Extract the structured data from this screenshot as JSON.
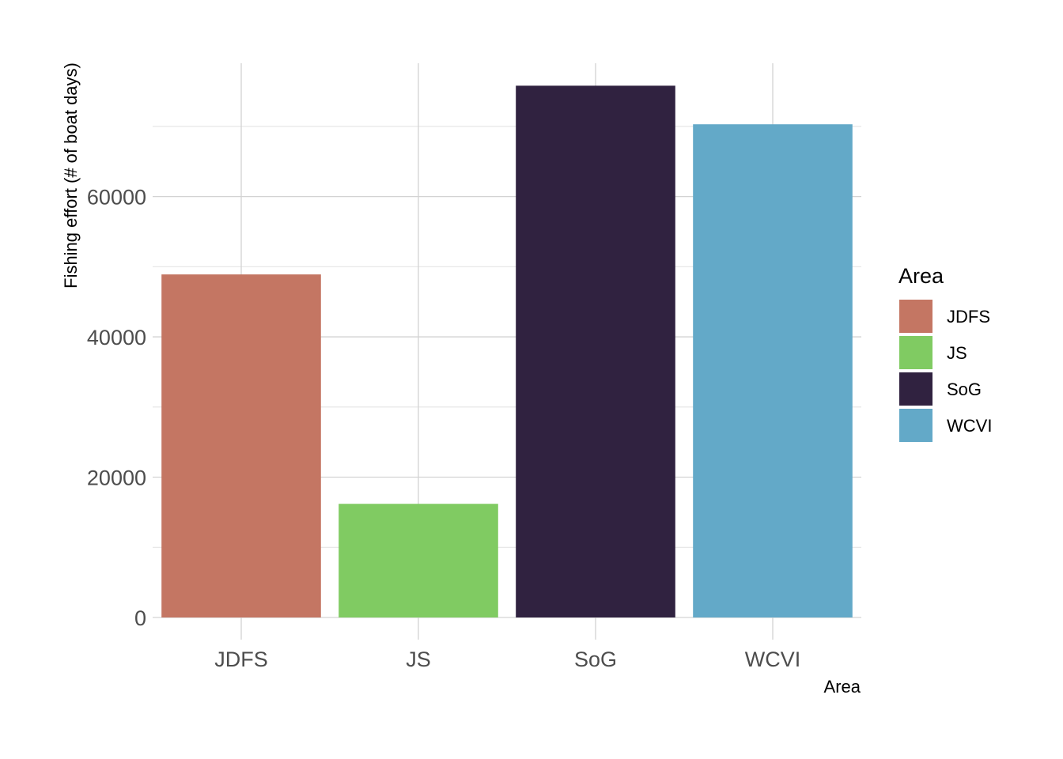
{
  "chart_data": {
    "type": "bar",
    "categories": [
      "JDFS",
      "JS",
      "SoG",
      "WCVI"
    ],
    "values": [
      48900,
      16200,
      75800,
      70300
    ],
    "colors": [
      "#C47663",
      "#80CB62",
      "#302240",
      "#63A9C8"
    ],
    "xlabel": "Area",
    "ylabel": "Fishing effort (# of boat days)",
    "ylim": [
      0,
      79000
    ],
    "yticks": [
      0,
      20000,
      40000,
      60000
    ],
    "ytick_labels": [
      "0",
      "20000",
      "40000",
      "60000"
    ],
    "grid": true,
    "legend": {
      "title": "Area",
      "placement": "right",
      "entries": [
        "JDFS",
        "JS",
        "SoG",
        "WCVI"
      ]
    }
  }
}
